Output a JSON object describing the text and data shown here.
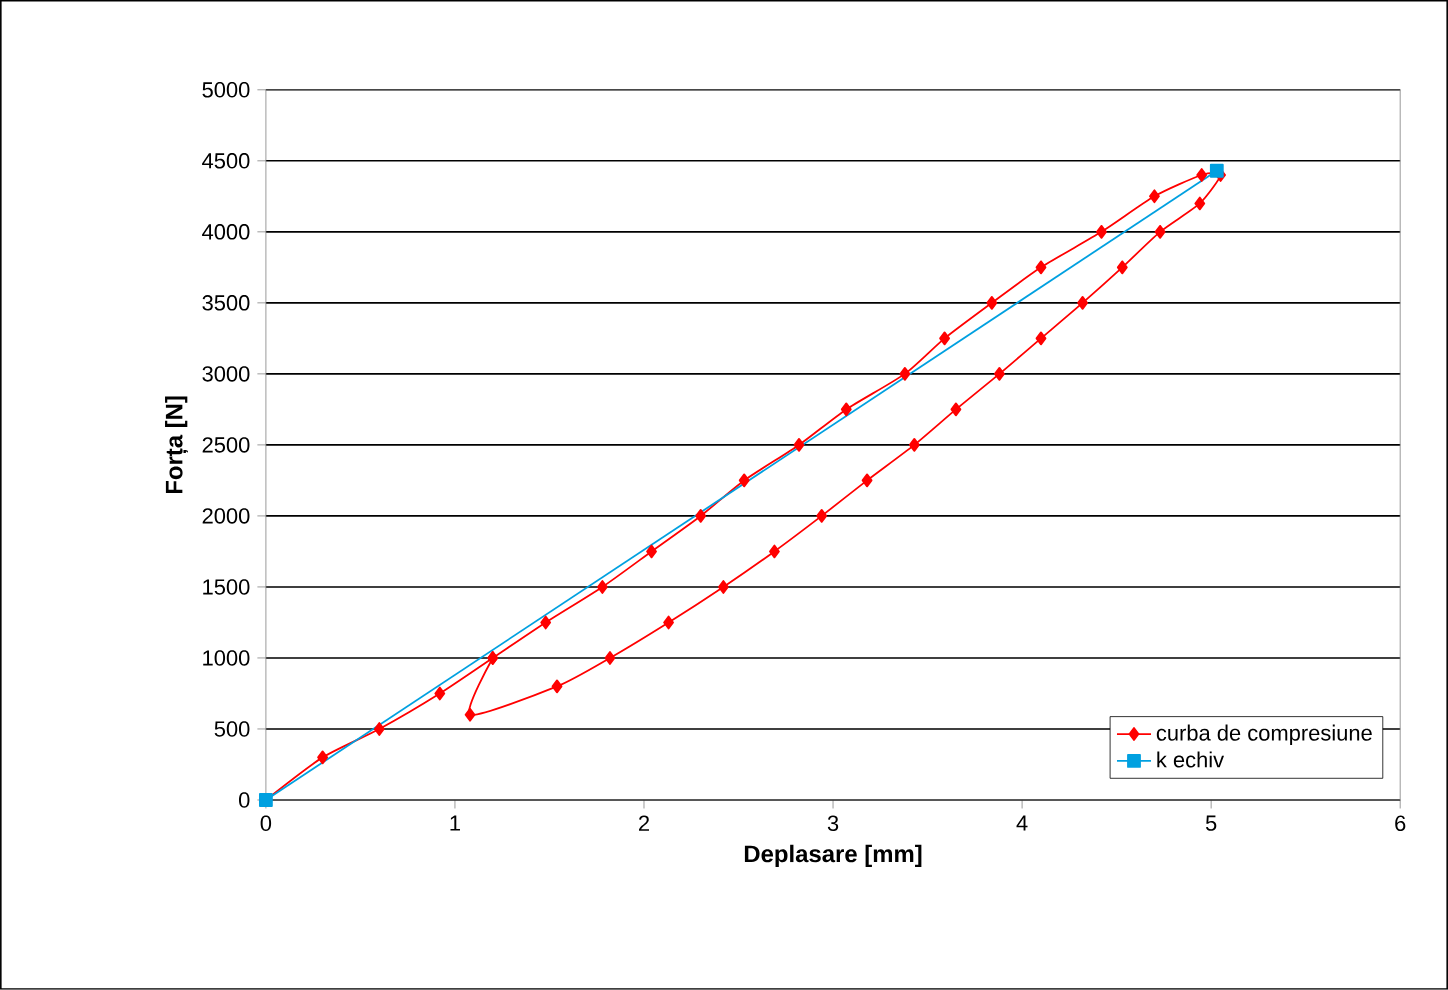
{
  "chart_data": {
    "type": "line",
    "xlabel": "Deplasare [mm]",
    "ylabel": "Forța [N]",
    "xlim": [
      0,
      6
    ],
    "ylim": [
      0,
      5000
    ],
    "xticks": [
      0,
      1,
      2,
      3,
      4,
      5,
      6
    ],
    "yticks": [
      0,
      500,
      1000,
      1500,
      2000,
      2500,
      3000,
      3500,
      4000,
      4500,
      5000
    ],
    "grid": "y",
    "legend": "bottom right",
    "line_style": "solid",
    "series": [
      {
        "name": "curba de compresiune",
        "color": "#ff0000",
        "marker": "diamond",
        "x": [
          0,
          0.3,
          0.6,
          0.92,
          1.2,
          1.48,
          1.78,
          2.04,
          2.3,
          2.53,
          2.82,
          3.07,
          3.38,
          3.59,
          3.84,
          4.1,
          4.42,
          4.7,
          4.95,
          5.05,
          4.94,
          4.73,
          4.53,
          4.32,
          4.1,
          3.88,
          3.65,
          3.43,
          3.18,
          2.94,
          2.69,
          2.42,
          2.13,
          1.82,
          1.54,
          1.08,
          1.2
        ],
        "values": [
          0,
          300,
          500,
          750,
          1000,
          1250,
          1500,
          1750,
          2000,
          2250,
          2500,
          2750,
          3000,
          3250,
          3500,
          3750,
          4000,
          4250,
          4400,
          4400,
          4200,
          4000,
          3750,
          3500,
          3250,
          3000,
          2750,
          2500,
          2250,
          2000,
          1750,
          1500,
          1250,
          1000,
          800,
          600,
          1000
        ]
      },
      {
        "name": "k echiv",
        "color": "#00a0e0",
        "marker": "square",
        "x": [
          0,
          5.03
        ],
        "values": [
          0,
          4430
        ]
      }
    ]
  }
}
